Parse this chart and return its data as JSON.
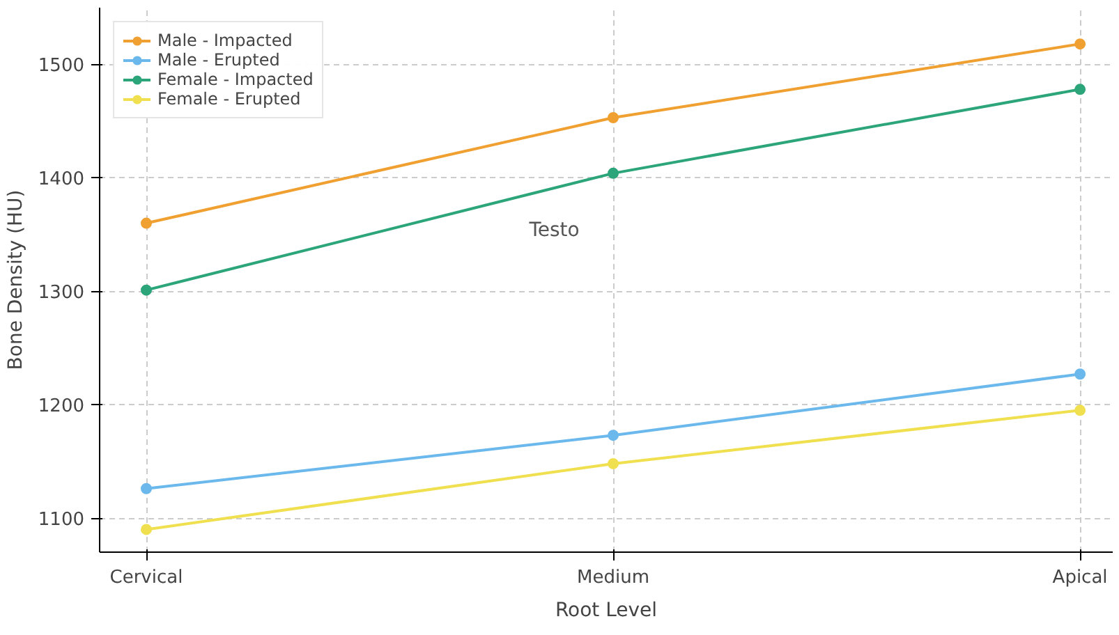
{
  "chart_data": {
    "type": "line",
    "xlabel": "Root Level",
    "ylabel": "Bone Density (HU)",
    "categories": [
      "Cervical",
      "Medium",
      "Apical"
    ],
    "series": [
      {
        "name": "Male - Impacted",
        "color": "#f0a030",
        "values": [
          1360,
          1453,
          1518
        ]
      },
      {
        "name": "Male - Erupted",
        "color": "#6bb8ec",
        "values": [
          1126,
          1173,
          1227
        ]
      },
      {
        "name": "Female - Impacted",
        "color": "#2ca57a",
        "values": [
          1301,
          1404,
          1478
        ]
      },
      {
        "name": "Female - Erupted",
        "color": "#f0e050",
        "values": [
          1090,
          1148,
          1195
        ]
      }
    ],
    "ylim": [
      1070,
      1550
    ],
    "yticks": [
      1100,
      1200,
      1300,
      1400,
      1500
    ],
    "grid": true,
    "legend": "top left",
    "marker": "circle",
    "line_style": "solid",
    "annotations": [
      "Testo"
    ]
  }
}
